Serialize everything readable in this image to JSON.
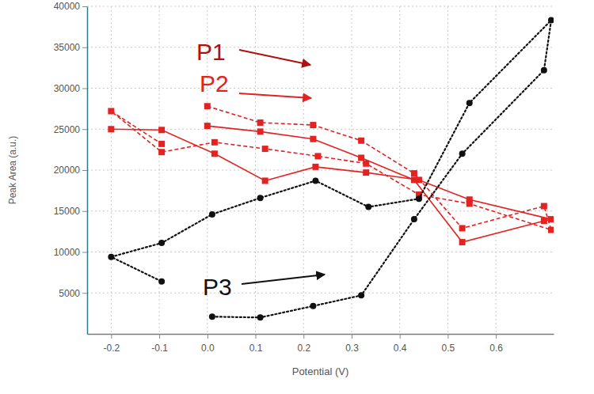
{
  "chart_data": {
    "type": "line",
    "x_label": "Potential (V)",
    "y_label": "Peak Area (a.u.)",
    "xlim": [
      -0.25,
      0.72
    ],
    "xticks": [
      -0.2,
      -0.1,
      {
        "value": 0,
        "label": "0.0"
      },
      0.1,
      0.2,
      0.3,
      0.4,
      0.5,
      0.6
    ],
    "ylim": [
      0,
      40000
    ],
    "yticks": [
      5000,
      10000,
      15000,
      20000,
      25000,
      30000,
      35000,
      40000
    ],
    "grid": true,
    "series": [
      {
        "name": "P1",
        "color": "#e32222",
        "marker": "square",
        "line_style": "dashed",
        "x": [
          0.0,
          0.11,
          0.22,
          0.32,
          0.43,
          0.53,
          0.7,
          0.715,
          0.545,
          0.44,
          0.33,
          0.23,
          0.12,
          0.015,
          -0.095,
          -0.2,
          -0.095
        ],
        "values": [
          27800,
          25800,
          25500,
          23600,
          19600,
          12900,
          15600,
          12700,
          15900,
          17000,
          20800,
          21700,
          22600,
          23400,
          22200,
          27200,
          23200
        ]
      },
      {
        "name": "P2",
        "color": "#e32222",
        "marker": "square",
        "line_style": "solid",
        "x": [
          0.0,
          0.11,
          0.22,
          0.32,
          0.43,
          0.53,
          0.7,
          0.715,
          0.545,
          0.44,
          0.33,
          0.225,
          0.12,
          0.015,
          -0.095,
          -0.2
        ],
        "values": [
          25400,
          24700,
          23800,
          21500,
          18800,
          11200,
          13800,
          14000,
          16400,
          18800,
          19700,
          20400,
          18700,
          22000,
          24900,
          25000
        ]
      },
      {
        "name": "P3",
        "color": "#111111",
        "marker": "circle",
        "line_style": "dotted",
        "x": [
          0.01,
          0.11,
          0.22,
          0.32,
          0.43,
          0.53,
          0.7,
          0.715,
          0.545,
          0.44,
          0.335,
          0.225,
          0.11,
          0.01,
          -0.095,
          -0.2,
          -0.095
        ],
        "values": [
          2100,
          2000,
          3400,
          4700,
          14000,
          22000,
          32200,
          38300,
          28200,
          16500,
          15500,
          18700,
          16600,
          14600,
          11100,
          9400,
          6400
        ]
      }
    ]
  }
}
